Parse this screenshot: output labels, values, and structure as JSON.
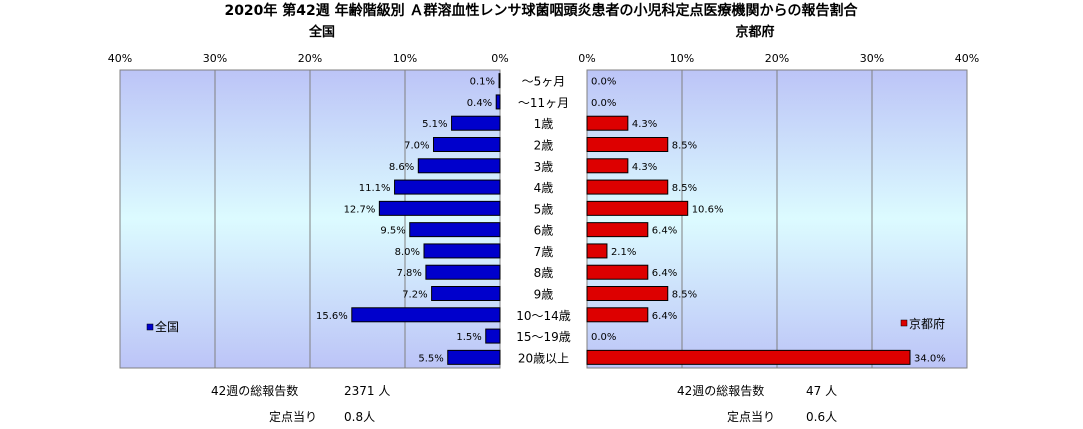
{
  "title": "2020年 第42週 年齢階級別 Ａ群溶血性レンサ球菌咽頭炎患者の小児科定点医療機関からの報告割合",
  "panels": {
    "left_title": "全国",
    "right_title": "京都府"
  },
  "colors": {
    "left_series": "#0000cc",
    "right_series": "#dd0000"
  },
  "chart_data": {
    "type": "bar",
    "orientation": "horizontal-butterfly",
    "title": "2020年 第42週 年齢階級別 Ａ群溶血性レンサ球菌咽頭炎患者の小児科定点医療機関からの報告割合",
    "categories": [
      "～5ヶ月",
      "～11ヶ月",
      "1歳",
      "2歳",
      "3歳",
      "4歳",
      "5歳",
      "6歳",
      "7歳",
      "8歳",
      "9歳",
      "10～14歳",
      "15～19歳",
      "20歳以上"
    ],
    "series": [
      {
        "name": "全国",
        "values": [
          0.1,
          0.4,
          5.1,
          7.0,
          8.6,
          11.1,
          12.7,
          9.5,
          8.0,
          7.8,
          7.2,
          15.6,
          1.5,
          5.5
        ],
        "labels": [
          "0.1%",
          "0.4%",
          "5.1%",
          "7.0%",
          "8.6%",
          "11.1%",
          "12.7%",
          "9.5%",
          "8.0%",
          "7.8%",
          "7.2%",
          "15.6%",
          "1.5%",
          "5.5%"
        ]
      },
      {
        "name": "京都府",
        "values": [
          0.0,
          0.0,
          4.3,
          8.5,
          4.3,
          8.5,
          10.6,
          6.4,
          2.1,
          6.4,
          8.5,
          6.4,
          0.0,
          34.0
        ],
        "labels": [
          "0.0%",
          "0.0%",
          "4.3%",
          "8.5%",
          "4.3%",
          "8.5%",
          "10.6%",
          "6.4%",
          "2.1%",
          "6.4%",
          "8.5%",
          "6.4%",
          "0.0%",
          "34.0%"
        ]
      }
    ],
    "xlim": [
      0,
      40
    ],
    "ticks_left": [
      "40%",
      "30%",
      "20%",
      "10%",
      "0%"
    ],
    "ticks_right": [
      "0%",
      "10%",
      "20%",
      "30%",
      "40%"
    ],
    "tick_values": [
      0,
      10,
      20,
      30,
      40
    ],
    "grid": true,
    "legend_left": "全国",
    "legend_right": "京都府"
  },
  "footer": {
    "left_total_label": "42週の総報告数",
    "left_total_value": "2371 人",
    "left_per_label": "定点当り",
    "left_per_value": "0.8人",
    "right_total_label": "42週の総報告数",
    "right_total_value": "47 人",
    "right_per_label": "定点当り",
    "right_per_value": "0.6人"
  }
}
